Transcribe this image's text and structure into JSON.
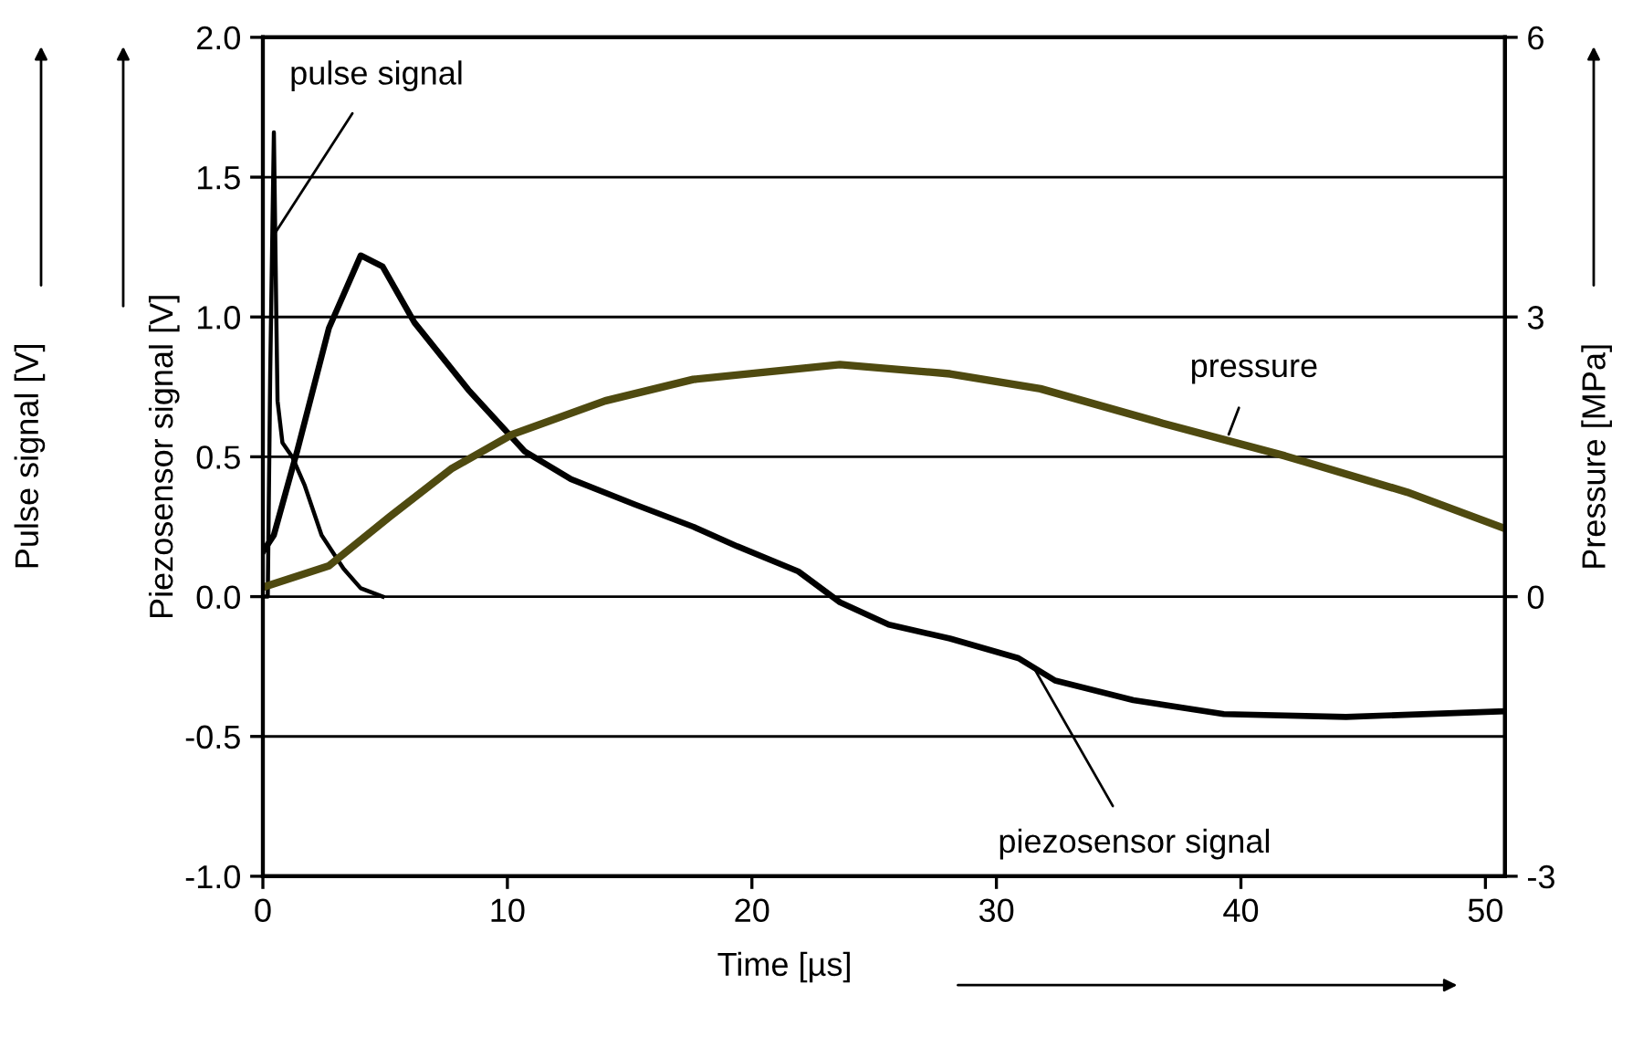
{
  "chart_data": {
    "type": "line",
    "xlabel": "Time [µs]",
    "ylabel": "Piezosensor signal [V]",
    "y2label": "Pressure [MPa]",
    "xlim": [
      0,
      50.8
    ],
    "xticks": [
      0,
      10,
      20,
      30,
      40,
      50
    ],
    "ylim": [
      -1.0,
      2.0
    ],
    "yticks": [
      {
        "value": -1.0,
        "label": "-1.0"
      },
      {
        "value": -0.5,
        "label": "-0.5"
      },
      {
        "value": 0.0,
        "label": "0.0"
      },
      {
        "value": 0.5,
        "label": "0.5"
      },
      {
        "value": 1.0,
        "label": "1.0"
      },
      {
        "value": 1.5,
        "label": "1.5"
      },
      {
        "value": 2.0,
        "label": "2.0"
      }
    ],
    "y2lim": [
      -3,
      6
    ],
    "y2ticks": [
      -3,
      0,
      3,
      6
    ],
    "grid": "y",
    "legend": false,
    "series": [
      {
        "color": "#000000",
        "x": [
          0,
          0.2,
          0.3,
          0.45,
          0.55,
          0.6,
          0.8,
          1.2,
          1.7,
          2.4,
          3.3,
          4.0,
          4.9
        ],
        "values": [
          0.0,
          0.0,
          0.8,
          1.66,
          1.0,
          0.7,
          0.55,
          0.5,
          0.4,
          0.22,
          0.1,
          0.03,
          0.0
        ]
      },
      {
        "color": "#000000",
        "x": [
          0,
          0.45,
          1.4,
          2.7,
          4.0,
          4.9,
          6.2,
          8.4,
          10.7,
          12.6,
          15.2,
          17.6,
          19.4,
          21.9,
          23.6,
          25.6,
          28.1,
          30.9,
          32.4,
          35.6,
          39.3,
          44.3,
          50.7
        ],
        "values": [
          0.16,
          0.22,
          0.52,
          0.96,
          1.22,
          1.18,
          0.98,
          0.74,
          0.52,
          0.42,
          0.33,
          0.25,
          0.18,
          0.09,
          -0.02,
          -0.1,
          -0.15,
          -0.22,
          -0.3,
          -0.37,
          -0.42,
          -0.43,
          -0.41
        ]
      },
      {
        "color": "#4f4a10",
        "axis": "y2",
        "x": [
          0,
          2.7,
          5.2,
          7.7,
          10.2,
          14.0,
          17.6,
          23.6,
          28.1,
          31.8,
          36.8,
          41.8,
          46.8,
          50.8
        ],
        "values": [
          0.1,
          0.33,
          0.86,
          1.37,
          1.74,
          2.1,
          2.33,
          2.49,
          2.39,
          2.23,
          1.86,
          1.51,
          1.12,
          0.73
        ]
      }
    ],
    "annotations": [
      {
        "text": "pulse signal",
        "x": 0.5,
        "y": 1.3
      },
      {
        "text": "piezosensor signal",
        "x": 31.5,
        "y": -0.25
      },
      {
        "text": "pressure",
        "x": 39.5,
        "y": 0.58
      },
      "Pulse signal [V]"
    ]
  }
}
